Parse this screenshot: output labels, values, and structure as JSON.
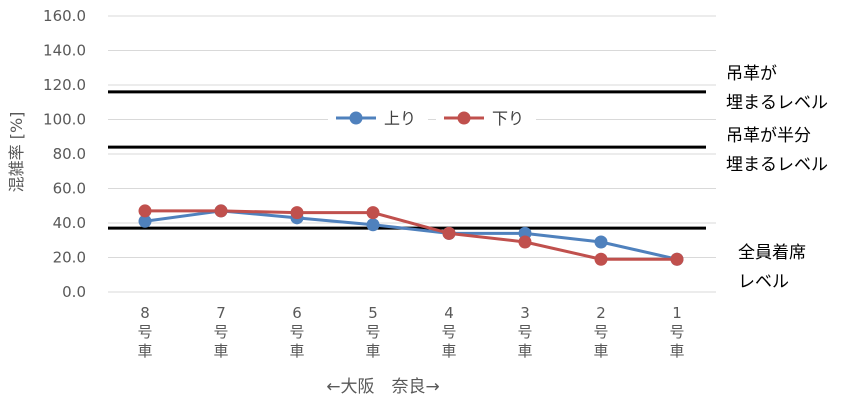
{
  "chart_data": {
    "type": "line",
    "ylabel": "混雑率 [%]",
    "xlabel": "←大阪　奈良→",
    "ylim": [
      0,
      160
    ],
    "y_ticks": [
      "0.0",
      "20.0",
      "40.0",
      "60.0",
      "80.0",
      "100.0",
      "120.0",
      "140.0",
      "160.0"
    ],
    "categories": [
      "8号車",
      "7号車",
      "6号車",
      "5号車",
      "4号車",
      "3号車",
      "2号車",
      "1号車"
    ],
    "series": [
      {
        "name": "上り",
        "color": "#4f81bd",
        "values": [
          41,
          47,
          43,
          39,
          34,
          34,
          29,
          19
        ]
      },
      {
        "name": "下り",
        "color": "#c0504d",
        "values": [
          47,
          47,
          46,
          46,
          34,
          29,
          19,
          19
        ]
      }
    ],
    "legend_position": "top-center",
    "grid": true,
    "reference_lines": [
      {
        "value": 116,
        "label_lines": [
          "吊革が",
          "埋まるレベル"
        ]
      },
      {
        "value": 84,
        "label_lines": [
          "吊革が半分",
          "埋まるレベル"
        ]
      },
      {
        "value": 37,
        "label_lines": [
          "全員着席",
          "レベル"
        ]
      }
    ]
  }
}
